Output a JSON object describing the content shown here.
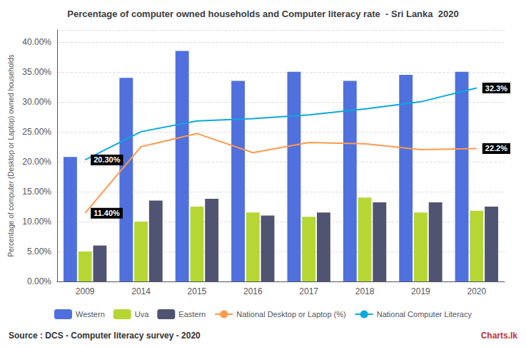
{
  "chart_data": {
    "type": "bar",
    "title": "Percentage of computer owned households and Computer literacy rate  - Sri Lanka  2020",
    "y_label": "Percentage of computer (Desktop or Laptop) owned households",
    "categories": [
      "2009",
      "2014",
      "2015",
      "2016",
      "2017",
      "2018",
      "2019",
      "2020"
    ],
    "series": [
      {
        "name": "Western",
        "type": "bar",
        "values": [
          20.8,
          34.0,
          38.5,
          33.5,
          35.0,
          33.5,
          34.5,
          35.0
        ]
      },
      {
        "name": "Uva",
        "type": "bar",
        "values": [
          5.0,
          10.0,
          12.5,
          11.5,
          10.8,
          14.0,
          11.5,
          11.8
        ]
      },
      {
        "name": "Eastern",
        "type": "bar",
        "values": [
          6.0,
          13.5,
          13.8,
          11.0,
          11.5,
          13.2,
          13.2,
          12.5
        ]
      },
      {
        "name": "National Desktop or Laptop (%)",
        "type": "line",
        "marker": "none",
        "line_style": "solid",
        "values": [
          11.4,
          22.5,
          24.7,
          21.5,
          23.2,
          23.0,
          22.0,
          22.2
        ]
      },
      {
        "name": "National Computer Literacy",
        "type": "line",
        "marker": "none",
        "line_style": "solid",
        "values": [
          20.3,
          25.0,
          26.8,
          27.2,
          27.8,
          28.8,
          30.0,
          32.3
        ]
      }
    ],
    "annotations": [
      {
        "text": "20.30%",
        "series": "National Computer Literacy",
        "x": "2009",
        "y": 20.3
      },
      {
        "text": "11.40%",
        "series": "National Desktop or Laptop (%)",
        "x": "2009",
        "y": 11.4
      },
      {
        "text": "32.3%",
        "series": "National Computer Literacy",
        "x": "2020",
        "y": 32.3
      },
      {
        "text": "22.2%",
        "series": "National Desktop or Laptop (%)",
        "x": "2020",
        "y": 22.2
      },
      {
        "text": "Source : DCS - Computer literacy survey - 2020"
      },
      {
        "text": "Charts.lk"
      }
    ],
    "ylim": [
      0,
      42
    ],
    "yticks": [
      {
        "value": 0,
        "label": "0.00%"
      },
      {
        "value": 5,
        "label": "5.00%"
      },
      {
        "value": 10,
        "label": "10.00%"
      },
      {
        "value": 15,
        "label": "15.00%"
      },
      {
        "value": 20,
        "label": "20.00%"
      },
      {
        "value": 25,
        "label": "25.00%"
      },
      {
        "value": 30,
        "label": "30.00%"
      },
      {
        "value": 35,
        "label": "35.00%"
      },
      {
        "value": 40,
        "label": "40.00%"
      }
    ],
    "grid": true,
    "legend": "bottom"
  }
}
